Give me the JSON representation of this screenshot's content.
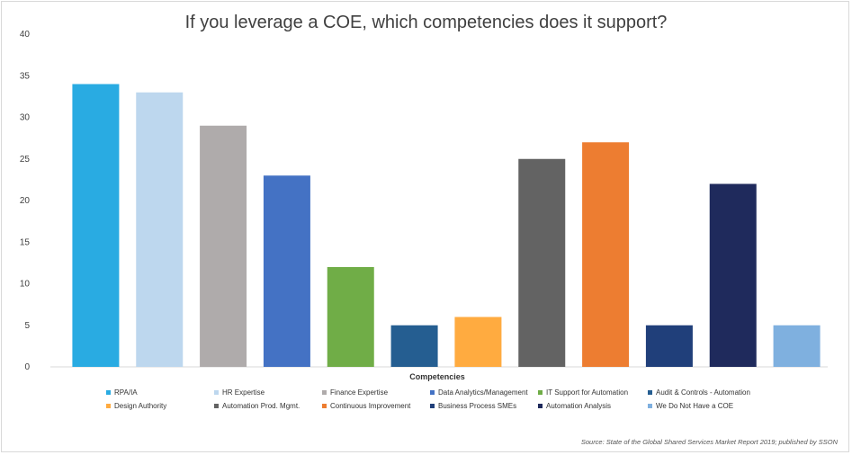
{
  "chart_data": {
    "type": "bar",
    "title": "If you leverage a COE, which competencies does it support?",
    "xlabel": "Competencies",
    "ylabel": "",
    "ylim": [
      0,
      40
    ],
    "yticks": [
      0,
      5,
      10,
      15,
      20,
      25,
      30,
      35,
      40
    ],
    "grid": false,
    "legend_position": "bottom",
    "categories": [
      "RPA/IA",
      "HR Expertise",
      "Finance Expertise",
      "Data Analytics/Management",
      "IT Support for Automation",
      "Audit & Controls - Automation",
      "Design Authority",
      "Automation Prod. Mgmt.",
      "Continuous Improvement",
      "Business Process SMEs",
      "Automation Analysis",
      "We Do Not Have a COE"
    ],
    "values": [
      34,
      33,
      29,
      23,
      12,
      5,
      6,
      25,
      27,
      5,
      22,
      5
    ],
    "colors": [
      "#29abe2",
      "#bdd7ee",
      "#afabab",
      "#4472c4",
      "#70ad47",
      "#255e91",
      "#ffab40",
      "#636363",
      "#ed7d31",
      "#203f7a",
      "#1f2a5c",
      "#7fb0df"
    ]
  },
  "source": "Source: State of the Global Shared Services Market Report 2019; published by SSON"
}
